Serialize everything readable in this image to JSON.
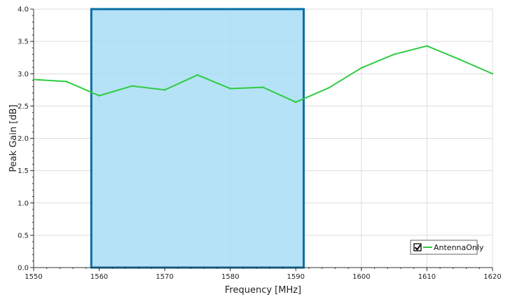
{
  "chart_data": {
    "type": "line",
    "xlabel": "Frequency [MHz]",
    "ylabel": "Peak Gain [dB]",
    "xlim": [
      1550,
      1620
    ],
    "ylim": [
      0.0,
      4.0
    ],
    "x_ticks": [
      1550,
      1560,
      1570,
      1580,
      1590,
      1600,
      1610,
      1620
    ],
    "y_ticks": [
      "0.0",
      "0.5",
      "1.0",
      "1.5",
      "2.0",
      "2.5",
      "3.0",
      "3.5",
      "4.0"
    ],
    "grid": true,
    "legend_position": "bottom-right",
    "band_highlight": {
      "x_start": 1558.8,
      "x_end": 1591.2,
      "fill": "#a8ddf5",
      "border": "#0a6fa4"
    },
    "series": [
      {
        "name": "AntennaOnly",
        "color": "#2ecc40",
        "legend_checked": true,
        "x": [
          1550,
          1555,
          1560,
          1565,
          1570,
          1575,
          1580,
          1585,
          1590,
          1595,
          1600,
          1605,
          1610,
          1615,
          1620
        ],
        "y": [
          2.91,
          2.88,
          2.66,
          2.81,
          2.75,
          2.98,
          2.77,
          2.79,
          2.56,
          2.78,
          3.09,
          3.3,
          3.43,
          3.22,
          3.0
        ]
      }
    ]
  }
}
